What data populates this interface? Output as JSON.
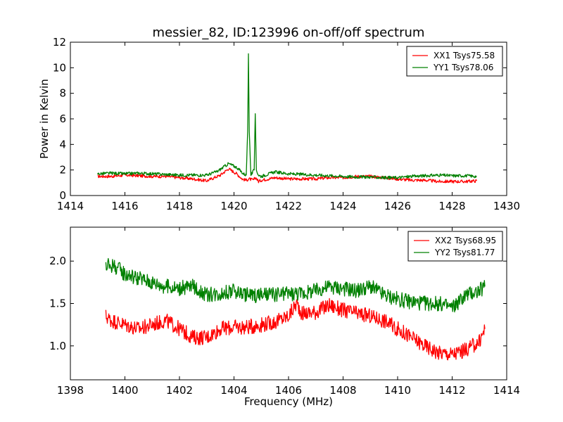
{
  "chart_data": [
    {
      "type": "line",
      "title": "messier_82, ID:123996 on-off/off spectrum",
      "xlabel": "",
      "ylabel": "Power in Kelvin",
      "xlim": [
        1414,
        1430
      ],
      "ylim": [
        0,
        12
      ],
      "xticks": [
        1414,
        1416,
        1418,
        1420,
        1422,
        1424,
        1426,
        1428,
        1430
      ],
      "yticks": [
        0,
        2,
        4,
        6,
        8,
        10,
        12
      ],
      "grid": false,
      "legend_position": "top-right",
      "series": [
        {
          "name": "XX1 Tsys75.58",
          "color": "#ff0000",
          "points": [
            [
              1415.0,
              1.5
            ],
            [
              1415.5,
              1.5
            ],
            [
              1416.0,
              1.6
            ],
            [
              1416.5,
              1.55
            ],
            [
              1417.0,
              1.5
            ],
            [
              1417.5,
              1.5
            ],
            [
              1418.0,
              1.4
            ],
            [
              1418.5,
              1.3
            ],
            [
              1419.0,
              1.15
            ],
            [
              1419.5,
              1.6
            ],
            [
              1419.8,
              2.1
            ],
            [
              1420.1,
              1.7
            ],
            [
              1420.3,
              1.3
            ],
            [
              1420.45,
              1.2
            ],
            [
              1420.55,
              1.3
            ],
            [
              1420.7,
              1.2
            ],
            [
              1420.8,
              1.4
            ],
            [
              1420.9,
              1.1
            ],
            [
              1421.0,
              1.2
            ],
            [
              1421.5,
              1.4
            ],
            [
              1422.0,
              1.3
            ],
            [
              1422.5,
              1.3
            ],
            [
              1423.0,
              1.3
            ],
            [
              1423.5,
              1.4
            ],
            [
              1424.0,
              1.4
            ],
            [
              1424.5,
              1.5
            ],
            [
              1425.0,
              1.5
            ],
            [
              1425.5,
              1.4
            ],
            [
              1426.0,
              1.3
            ],
            [
              1426.5,
              1.2
            ],
            [
              1427.0,
              1.2
            ],
            [
              1427.5,
              1.1
            ],
            [
              1428.0,
              1.1
            ],
            [
              1428.5,
              1.1
            ],
            [
              1428.9,
              1.15
            ]
          ]
        },
        {
          "name": "YY1 Tsys78.06",
          "color": "#008000",
          "points": [
            [
              1415.0,
              1.7
            ],
            [
              1415.5,
              1.75
            ],
            [
              1416.0,
              1.7
            ],
            [
              1416.5,
              1.75
            ],
            [
              1417.0,
              1.7
            ],
            [
              1417.5,
              1.65
            ],
            [
              1418.0,
              1.6
            ],
            [
              1418.5,
              1.6
            ],
            [
              1419.0,
              1.6
            ],
            [
              1419.4,
              1.9
            ],
            [
              1419.8,
              2.5
            ],
            [
              1420.1,
              2.2
            ],
            [
              1420.35,
              1.7
            ],
            [
              1420.45,
              1.6
            ],
            [
              1420.5,
              5.0
            ],
            [
              1420.53,
              11.1
            ],
            [
              1420.56,
              5.0
            ],
            [
              1420.62,
              1.6
            ],
            [
              1420.74,
              2.0
            ],
            [
              1420.78,
              6.4
            ],
            [
              1420.82,
              2.0
            ],
            [
              1420.9,
              1.6
            ],
            [
              1421.0,
              1.5
            ],
            [
              1421.5,
              1.85
            ],
            [
              1422.0,
              1.7
            ],
            [
              1422.5,
              1.65
            ],
            [
              1423.0,
              1.6
            ],
            [
              1423.5,
              1.55
            ],
            [
              1424.0,
              1.5
            ],
            [
              1424.5,
              1.45
            ],
            [
              1425.0,
              1.45
            ],
            [
              1425.5,
              1.4
            ],
            [
              1426.0,
              1.4
            ],
            [
              1426.5,
              1.5
            ],
            [
              1427.0,
              1.55
            ],
            [
              1427.5,
              1.6
            ],
            [
              1428.0,
              1.55
            ],
            [
              1428.5,
              1.55
            ],
            [
              1428.9,
              1.5
            ]
          ]
        }
      ]
    },
    {
      "type": "line",
      "title": "",
      "xlabel": "Frequency (MHz)",
      "ylabel": "",
      "xlim": [
        1398,
        1414
      ],
      "ylim": [
        0.6,
        2.4
      ],
      "xticks": [
        1398,
        1400,
        1402,
        1404,
        1406,
        1408,
        1410,
        1412,
        1414
      ],
      "yticks": [
        1.0,
        1.5,
        2.0
      ],
      "grid": false,
      "legend_position": "top-right",
      "series": [
        {
          "name": "XX2 Tsys68.95",
          "color": "#ff0000",
          "points": [
            [
              1399.3,
              1.35
            ],
            [
              1399.5,
              1.3
            ],
            [
              1400.0,
              1.25
            ],
            [
              1400.5,
              1.2
            ],
            [
              1401.0,
              1.25
            ],
            [
              1401.5,
              1.3
            ],
            [
              1402.0,
              1.2
            ],
            [
              1402.5,
              1.1
            ],
            [
              1403.0,
              1.1
            ],
            [
              1403.5,
              1.2
            ],
            [
              1404.0,
              1.22
            ],
            [
              1404.5,
              1.22
            ],
            [
              1405.0,
              1.25
            ],
            [
              1405.5,
              1.28
            ],
            [
              1406.0,
              1.35
            ],
            [
              1406.3,
              1.5
            ],
            [
              1406.5,
              1.38
            ],
            [
              1407.0,
              1.4
            ],
            [
              1407.5,
              1.48
            ],
            [
              1408.0,
              1.42
            ],
            [
              1408.5,
              1.38
            ],
            [
              1409.0,
              1.35
            ],
            [
              1409.5,
              1.3
            ],
            [
              1410.0,
              1.2
            ],
            [
              1410.5,
              1.1
            ],
            [
              1411.0,
              1.0
            ],
            [
              1411.5,
              0.92
            ],
            [
              1412.0,
              0.9
            ],
            [
              1412.5,
              0.95
            ],
            [
              1413.0,
              1.05
            ],
            [
              1413.2,
              1.2
            ]
          ]
        },
        {
          "name": "YY2 Tsys81.77",
          "color": "#008000",
          "points": [
            [
              1399.3,
              1.95
            ],
            [
              1399.6,
              1.95
            ],
            [
              1400.0,
              1.85
            ],
            [
              1400.5,
              1.8
            ],
            [
              1401.0,
              1.75
            ],
            [
              1401.5,
              1.7
            ],
            [
              1402.0,
              1.68
            ],
            [
              1402.5,
              1.7
            ],
            [
              1403.0,
              1.6
            ],
            [
              1403.5,
              1.62
            ],
            [
              1404.0,
              1.65
            ],
            [
              1404.5,
              1.6
            ],
            [
              1405.0,
              1.6
            ],
            [
              1405.5,
              1.6
            ],
            [
              1406.0,
              1.62
            ],
            [
              1406.5,
              1.62
            ],
            [
              1407.0,
              1.65
            ],
            [
              1407.5,
              1.7
            ],
            [
              1408.0,
              1.68
            ],
            [
              1408.5,
              1.65
            ],
            [
              1409.0,
              1.7
            ],
            [
              1409.5,
              1.6
            ],
            [
              1410.0,
              1.55
            ],
            [
              1410.5,
              1.52
            ],
            [
              1411.0,
              1.5
            ],
            [
              1411.5,
              1.5
            ],
            [
              1412.0,
              1.45
            ],
            [
              1412.5,
              1.6
            ],
            [
              1413.0,
              1.65
            ],
            [
              1413.2,
              1.7
            ]
          ]
        }
      ]
    }
  ]
}
